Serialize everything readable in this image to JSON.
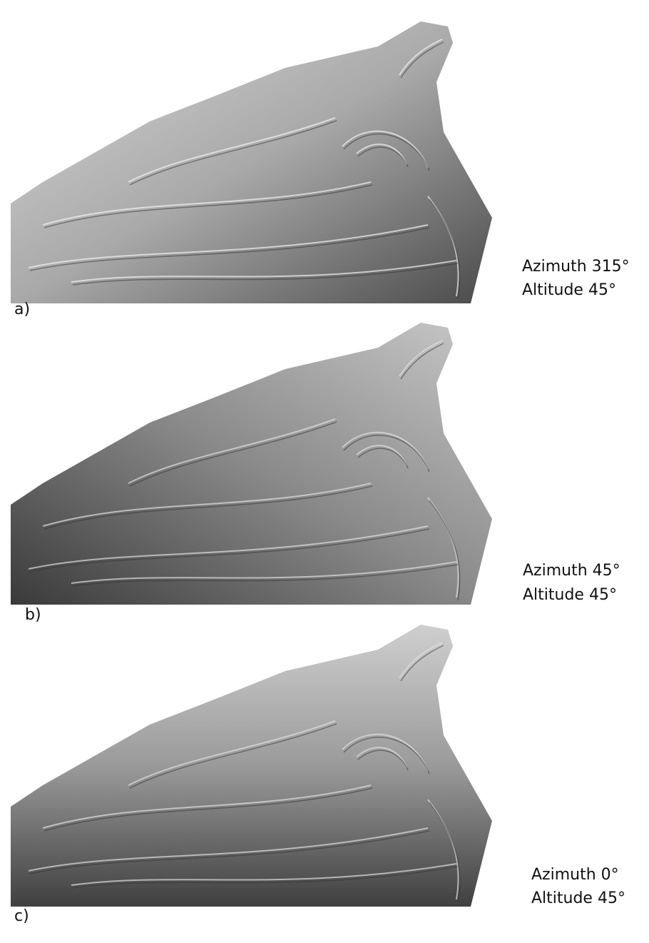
{
  "panels": [
    {
      "label": "a)",
      "lines": [
        "Azimuth 315°",
        "Altitude 45°"
      ]
    },
    {
      "label": "b)",
      "lines": [
        "Azimuth 45°",
        "Altitude 45°"
      ]
    },
    {
      "label": "c)",
      "lines": [
        "Azimuth 0°",
        "Altitude 45°"
      ]
    }
  ]
}
